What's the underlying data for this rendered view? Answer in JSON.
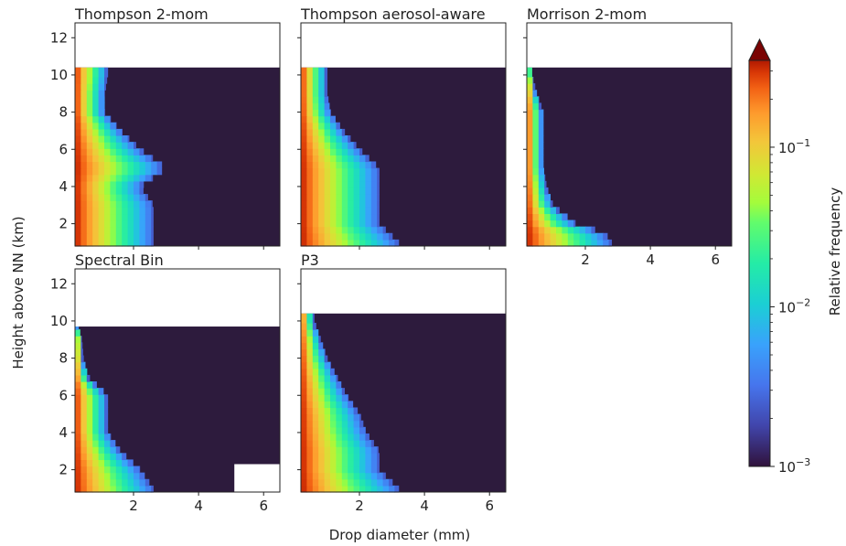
{
  "chart_data": {
    "type": "heatmap",
    "xlabel": "Drop diameter (mm)",
    "ylabel": "Height above NN (km)",
    "xlim": [
      0.2,
      6.5
    ],
    "ylim": [
      0.8,
      12.8
    ],
    "x_ticks": [
      "2",
      "4",
      "6"
    ],
    "y_ticks": [
      "2",
      "4",
      "6",
      "8",
      "10",
      "12"
    ],
    "panels": [
      {
        "title": "Thompson 2-mom",
        "top_km": 10.4,
        "profile": [
          [
            1.0,
            2.6
          ],
          [
            2.0,
            2.6
          ],
          [
            3.0,
            2.6
          ],
          [
            4.0,
            2.2
          ],
          [
            5.0,
            3.0
          ],
          [
            6.0,
            2.2
          ],
          [
            7.0,
            1.6
          ],
          [
            8.0,
            1.1
          ],
          [
            9.0,
            1.1
          ],
          [
            10.0,
            1.2
          ]
        ],
        "colors": [
          "#2d1e3e"
        ]
      },
      {
        "title": "Thompson aerosol-aware",
        "top_km": 10.4,
        "profile": [
          [
            1.0,
            3.2
          ],
          [
            2.0,
            2.6
          ],
          [
            3.0,
            2.6
          ],
          [
            4.0,
            2.6
          ],
          [
            5.0,
            2.6
          ],
          [
            6.0,
            2.0
          ],
          [
            7.0,
            1.5
          ],
          [
            8.0,
            1.1
          ],
          [
            9.0,
            1.0
          ],
          [
            10.0,
            1.0
          ]
        ],
        "colors": []
      },
      {
        "title": "Morrison 2-mom",
        "top_km": 10.4,
        "profile": [
          [
            1.0,
            2.8
          ],
          [
            1.5,
            2.6
          ],
          [
            2.0,
            1.7
          ],
          [
            3.0,
            1.0
          ],
          [
            4.0,
            0.8
          ],
          [
            5.0,
            0.7
          ],
          [
            6.0,
            0.7
          ],
          [
            7.0,
            0.7
          ],
          [
            8.0,
            0.7
          ],
          [
            9.0,
            0.5
          ],
          [
            10.0,
            0.35
          ]
        ],
        "colors": []
      },
      {
        "title": "Spectral Bin",
        "top_km": 9.7,
        "profile": [
          [
            1.0,
            2.6
          ],
          [
            2.0,
            2.2
          ],
          [
            3.0,
            1.6
          ],
          [
            4.0,
            1.2
          ],
          [
            5.0,
            1.2
          ],
          [
            6.0,
            1.2
          ],
          [
            7.0,
            0.6
          ],
          [
            8.0,
            0.45
          ],
          [
            9.0,
            0.4
          ],
          [
            9.7,
            0.3
          ]
        ],
        "no_data_box": {
          "x": [
            5.1,
            6.5
          ],
          "y": [
            0.8,
            2.3
          ]
        }
      },
      {
        "title": "P3",
        "top_km": 10.4,
        "profile": [
          [
            1.0,
            3.2
          ],
          [
            2.0,
            2.6
          ],
          [
            3.0,
            2.6
          ],
          [
            4.0,
            2.2
          ],
          [
            5.0,
            2.0
          ],
          [
            6.0,
            1.6
          ],
          [
            7.0,
            1.3
          ],
          [
            8.0,
            1.0
          ],
          [
            9.0,
            0.8
          ],
          [
            10.0,
            0.6
          ]
        ]
      }
    ],
    "colorbar": {
      "label": "Relative frequency",
      "scale": "log",
      "range": [
        0.001,
        0.35
      ],
      "ticks": [
        {
          "base": "10",
          "exp": "−1",
          "value": 0.1
        },
        {
          "base": "10",
          "exp": "−2",
          "value": 0.01
        },
        {
          "base": "10",
          "exp": "−3",
          "value": 0.001
        }
      ],
      "colormap": "turbo",
      "extend": "max"
    }
  }
}
